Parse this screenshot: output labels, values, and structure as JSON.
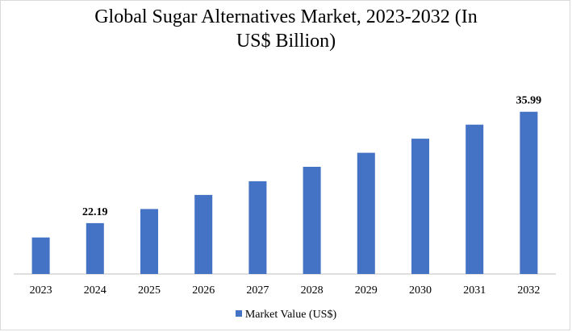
{
  "chart_data": {
    "type": "bar",
    "title_line1": "Global Sugar Alternatives Market, 2023-2032 (In",
    "title_line2": "US$ Billion)",
    "categories": [
      "2023",
      "2024",
      "2025",
      "2026",
      "2027",
      "2028",
      "2029",
      "2030",
      "2031",
      "2032"
    ],
    "series": [
      {
        "name": "Market Value (US$)",
        "values": [
          17.0,
          22.19,
          26.7,
          32.0,
          37.2,
          42.2,
          47.5,
          52.4,
          57.5,
          35.99
        ],
        "data_labels": {
          "1": "22.19",
          "9": "35.99"
        }
      }
    ],
    "ylim": [
      0,
      70
    ],
    "grid": false,
    "legend_position": "bottom",
    "bar_color": "#4472c4"
  }
}
